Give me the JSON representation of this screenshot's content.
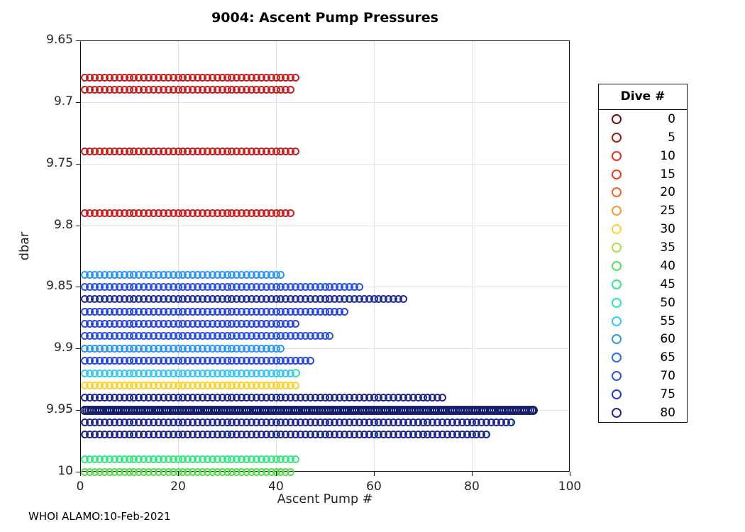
{
  "title": "9004: Ascent Pump Pressures",
  "footer_note": "WHOI ALAMO:10-Feb-2021",
  "legend": {
    "title": "Dive #",
    "entries": [
      {
        "label": "0",
        "color": "#6B1212"
      },
      {
        "label": "5",
        "color": "#9E2013"
      },
      {
        "label": "10",
        "color": "#EE2C24"
      },
      {
        "label": "15",
        "color": "#F13A22"
      },
      {
        "label": "20",
        "color": "#F2662C"
      },
      {
        "label": "25",
        "color": "#F59A38"
      },
      {
        "label": "30",
        "color": "#FBD337"
      },
      {
        "label": "35",
        "color": "#A8E53E"
      },
      {
        "label": "40",
        "color": "#57E359"
      },
      {
        "label": "45",
        "color": "#3BE77D"
      },
      {
        "label": "50",
        "color": "#31E3B2"
      },
      {
        "label": "55",
        "color": "#38C9F0"
      },
      {
        "label": "60",
        "color": "#3196F0"
      },
      {
        "label": "65",
        "color": "#2C6CE8"
      },
      {
        "label": "70",
        "color": "#2A52DE"
      },
      {
        "label": "75",
        "color": "#2539CC"
      },
      {
        "label": "80",
        "color": "#1E2690"
      }
    ]
  },
  "chart_data": {
    "type": "scatter",
    "title": "9004: Ascent Pump Pressures",
    "xlabel": "Ascent Pump #",
    "ylabel": "dbar",
    "xlim": [
      0,
      100
    ],
    "ylim": [
      9.65,
      10.0
    ],
    "y_axis_reversed": true,
    "grid": true,
    "legend_position": "outside-right",
    "marker": "o",
    "xticks": [
      0,
      20,
      40,
      60,
      80,
      100
    ],
    "yticks": [
      9.65,
      9.7,
      9.75,
      9.8,
      9.85,
      9.9,
      9.95,
      10
    ],
    "ytick_labels": [
      "9.65",
      "9.7",
      "9.75",
      "9.8",
      "9.85",
      "9.9",
      "9.95",
      "10"
    ],
    "rows": [
      {
        "pressure_dbar": 9.68,
        "pump_start": 1,
        "pump_end": 44,
        "color": "#C41E1E"
      },
      {
        "pressure_dbar": 9.69,
        "pump_start": 1,
        "pump_end": 43,
        "color": "#C41E1E"
      },
      {
        "pressure_dbar": 9.74,
        "pump_start": 1,
        "pump_end": 44,
        "color": "#C41E1E"
      },
      {
        "pressure_dbar": 9.79,
        "pump_start": 1,
        "pump_end": 43,
        "color": "#CE1B1B"
      },
      {
        "pressure_dbar": 9.84,
        "pump_start": 1,
        "pump_end": 41,
        "color": "#2E96F2"
      },
      {
        "pressure_dbar": 9.85,
        "pump_start": 1,
        "pump_end": 57,
        "color": "#2A52DE"
      },
      {
        "pressure_dbar": 9.86,
        "pump_start": 1,
        "pump_end": 66,
        "color": "#1E2CA0"
      },
      {
        "pressure_dbar": 9.87,
        "pump_start": 1,
        "pump_end": 54,
        "color": "#2846E0"
      },
      {
        "pressure_dbar": 9.88,
        "pump_start": 1,
        "pump_end": 44,
        "color": "#2846E0"
      },
      {
        "pressure_dbar": 9.89,
        "pump_start": 1,
        "pump_end": 51,
        "color": "#2A50E0"
      },
      {
        "pressure_dbar": 9.9,
        "pump_start": 1,
        "pump_end": 41,
        "color": "#2E96F2"
      },
      {
        "pressure_dbar": 9.91,
        "pump_start": 1,
        "pump_end": 47,
        "color": "#2846E0"
      },
      {
        "pressure_dbar": 9.92,
        "pump_start": 1,
        "pump_end": 43,
        "color": "#38C8F0",
        "end_cap_color": "#35E3B0",
        "end_cap_x": 44
      },
      {
        "pressure_dbar": 9.93,
        "pump_start": 1,
        "pump_end": 44,
        "color": "#FFD02A"
      },
      {
        "pressure_dbar": 9.94,
        "pump_start": 1,
        "pump_end": 74,
        "color": "#1E2690"
      },
      {
        "pressure_dbar": 9.95,
        "pump_start": 1,
        "pump_end": 93,
        "color": "#18206E",
        "dense": true
      },
      {
        "pressure_dbar": 9.96,
        "pump_start": 1,
        "pump_end": 88,
        "color": "#1E2690",
        "underlay_color": "#2FD9A8"
      },
      {
        "pressure_dbar": 9.97,
        "pump_start": 1,
        "pump_end": 83,
        "color": "#1E2690",
        "underlay_color": "#2FD9A8"
      },
      {
        "pressure_dbar": 9.99,
        "pump_start": 1,
        "pump_end": 44,
        "color": "#35E87F"
      },
      {
        "pressure_dbar": 10.0,
        "pump_start": 1,
        "pump_end": 43,
        "color": "#55DD4A"
      }
    ]
  }
}
